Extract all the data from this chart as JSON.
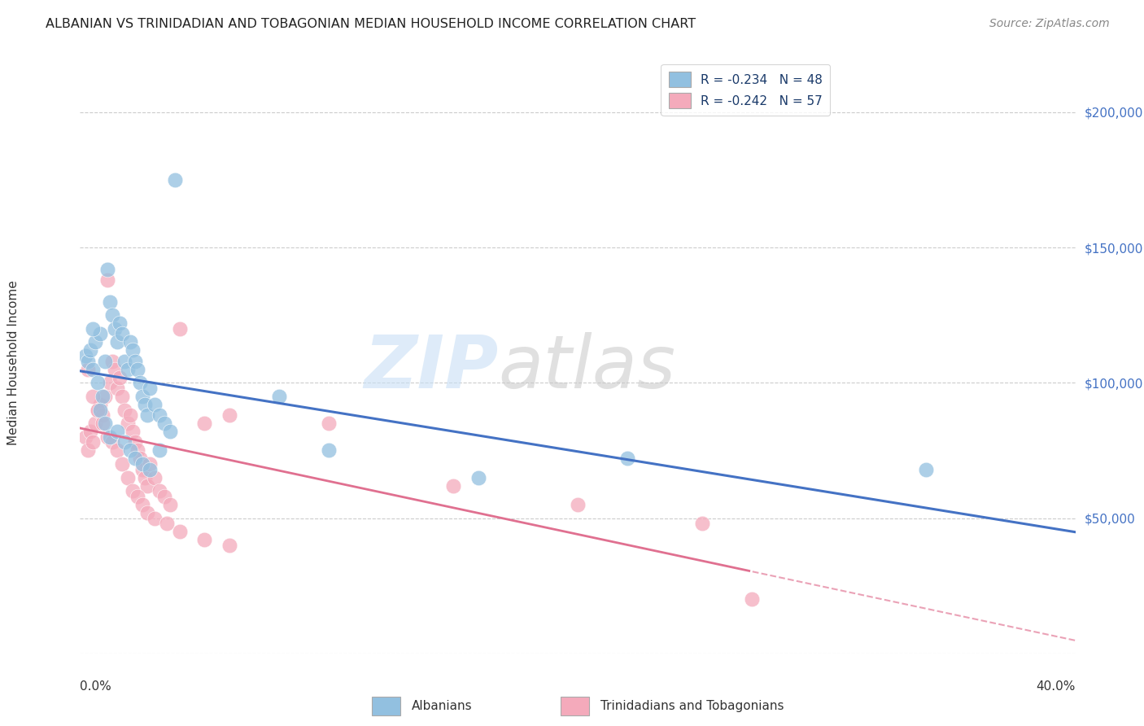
{
  "title": "ALBANIAN VS TRINIDADIAN AND TOBAGONIAN MEDIAN HOUSEHOLD INCOME CORRELATION CHART",
  "source": "Source: ZipAtlas.com",
  "ylabel": "Median Household Income",
  "y_ticks": [
    0,
    50000,
    100000,
    150000,
    200000
  ],
  "y_tick_labels": [
    "",
    "$50,000",
    "$100,000",
    "$150,000",
    "$200,000"
  ],
  "xlim": [
    0.0,
    0.4
  ],
  "ylim": [
    0,
    220000
  ],
  "blue_color": "#92C0E0",
  "pink_color": "#F4AABB",
  "line_blue": "#4472C4",
  "line_pink": "#E07090",
  "legend_label1": "Albanians",
  "legend_label2": "Trinidadians and Tobagonians",
  "albanians_x": [
    0.002,
    0.003,
    0.004,
    0.005,
    0.006,
    0.007,
    0.008,
    0.009,
    0.01,
    0.011,
    0.012,
    0.013,
    0.014,
    0.015,
    0.016,
    0.017,
    0.018,
    0.019,
    0.02,
    0.021,
    0.022,
    0.023,
    0.024,
    0.025,
    0.026,
    0.027,
    0.028,
    0.03,
    0.032,
    0.034,
    0.036,
    0.038,
    0.08,
    0.1,
    0.005,
    0.008,
    0.01,
    0.012,
    0.015,
    0.018,
    0.02,
    0.022,
    0.025,
    0.028,
    0.032,
    0.16,
    0.22,
    0.34
  ],
  "albanians_y": [
    110000,
    108000,
    112000,
    105000,
    115000,
    100000,
    118000,
    95000,
    108000,
    142000,
    130000,
    125000,
    120000,
    115000,
    122000,
    118000,
    108000,
    105000,
    115000,
    112000,
    108000,
    105000,
    100000,
    95000,
    92000,
    88000,
    98000,
    92000,
    88000,
    85000,
    82000,
    175000,
    95000,
    75000,
    120000,
    90000,
    85000,
    80000,
    82000,
    78000,
    75000,
    72000,
    70000,
    68000,
    75000,
    65000,
    72000,
    68000
  ],
  "trini_x": [
    0.002,
    0.003,
    0.004,
    0.005,
    0.006,
    0.007,
    0.008,
    0.009,
    0.01,
    0.011,
    0.012,
    0.013,
    0.014,
    0.015,
    0.016,
    0.017,
    0.018,
    0.019,
    0.02,
    0.021,
    0.022,
    0.023,
    0.024,
    0.025,
    0.026,
    0.027,
    0.028,
    0.03,
    0.032,
    0.034,
    0.036,
    0.04,
    0.05,
    0.06,
    0.003,
    0.005,
    0.007,
    0.009,
    0.011,
    0.013,
    0.015,
    0.017,
    0.019,
    0.021,
    0.023,
    0.025,
    0.027,
    0.03,
    0.035,
    0.04,
    0.05,
    0.06,
    0.1,
    0.15,
    0.2,
    0.25,
    0.27
  ],
  "trini_y": [
    80000,
    75000,
    82000,
    78000,
    85000,
    90000,
    92000,
    88000,
    95000,
    138000,
    100000,
    108000,
    105000,
    98000,
    102000,
    95000,
    90000,
    85000,
    88000,
    82000,
    78000,
    75000,
    72000,
    68000,
    65000,
    62000,
    70000,
    65000,
    60000,
    58000,
    55000,
    120000,
    85000,
    88000,
    105000,
    95000,
    90000,
    85000,
    80000,
    78000,
    75000,
    70000,
    65000,
    60000,
    58000,
    55000,
    52000,
    50000,
    48000,
    45000,
    42000,
    40000,
    85000,
    62000,
    55000,
    48000,
    20000
  ]
}
